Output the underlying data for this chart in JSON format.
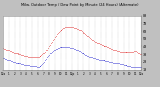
{
  "title": "Milw. Outdoor Temp / Dew Point by Minute (24 Hours) (Alternate)",
  "bg_color": "#c0c0c0",
  "plot_bg": "#ffffff",
  "title_bg": "#c0c0c0",
  "grid_color": "#aaaaaa",
  "red_color": "#dd0000",
  "blue_color": "#0000cc",
  "ylim": [
    10,
    80
  ],
  "yticks": [
    10,
    20,
    30,
    40,
    50,
    60,
    70,
    80
  ],
  "xlim": [
    0,
    1440
  ],
  "xtick_positions": [
    0,
    60,
    120,
    180,
    240,
    300,
    360,
    420,
    480,
    540,
    600,
    660,
    720,
    780,
    840,
    900,
    960,
    1020,
    1080,
    1140,
    1200,
    1260,
    1320,
    1380,
    1440
  ],
  "temp_data": [
    [
      0,
      38
    ],
    [
      10,
      37
    ],
    [
      20,
      37
    ],
    [
      30,
      36
    ],
    [
      40,
      36
    ],
    [
      50,
      35
    ],
    [
      60,
      35
    ],
    [
      70,
      34
    ],
    [
      80,
      34
    ],
    [
      90,
      33
    ],
    [
      100,
      33
    ],
    [
      110,
      32
    ],
    [
      120,
      32
    ],
    [
      130,
      32
    ],
    [
      140,
      31
    ],
    [
      150,
      31
    ],
    [
      160,
      30
    ],
    [
      170,
      30
    ],
    [
      180,
      30
    ],
    [
      190,
      29
    ],
    [
      200,
      29
    ],
    [
      210,
      29
    ],
    [
      220,
      28
    ],
    [
      230,
      28
    ],
    [
      240,
      28
    ],
    [
      250,
      28
    ],
    [
      260,
      27
    ],
    [
      270,
      27
    ],
    [
      280,
      27
    ],
    [
      290,
      27
    ],
    [
      300,
      27
    ],
    [
      310,
      27
    ],
    [
      320,
      27
    ],
    [
      330,
      27
    ],
    [
      340,
      27
    ],
    [
      350,
      27
    ],
    [
      360,
      27
    ],
    [
      370,
      27
    ],
    [
      380,
      28
    ],
    [
      390,
      28
    ],
    [
      400,
      29
    ],
    [
      410,
      30
    ],
    [
      420,
      31
    ],
    [
      430,
      32
    ],
    [
      440,
      33
    ],
    [
      450,
      35
    ],
    [
      460,
      36
    ],
    [
      470,
      38
    ],
    [
      480,
      40
    ],
    [
      490,
      42
    ],
    [
      500,
      44
    ],
    [
      510,
      46
    ],
    [
      520,
      48
    ],
    [
      530,
      50
    ],
    [
      540,
      52
    ],
    [
      550,
      54
    ],
    [
      560,
      56
    ],
    [
      570,
      57
    ],
    [
      580,
      59
    ],
    [
      590,
      60
    ],
    [
      600,
      61
    ],
    [
      610,
      62
    ],
    [
      620,
      63
    ],
    [
      630,
      64
    ],
    [
      640,
      64
    ],
    [
      650,
      65
    ],
    [
      660,
      65
    ],
    [
      670,
      65
    ],
    [
      680,
      65
    ],
    [
      690,
      65
    ],
    [
      700,
      65
    ],
    [
      710,
      65
    ],
    [
      720,
      65
    ],
    [
      730,
      65
    ],
    [
      740,
      64
    ],
    [
      750,
      64
    ],
    [
      760,
      64
    ],
    [
      770,
      63
    ],
    [
      780,
      63
    ],
    [
      790,
      62
    ],
    [
      800,
      61
    ],
    [
      810,
      61
    ],
    [
      820,
      60
    ],
    [
      830,
      59
    ],
    [
      840,
      58
    ],
    [
      850,
      57
    ],
    [
      860,
      56
    ],
    [
      870,
      55
    ],
    [
      880,
      54
    ],
    [
      890,
      53
    ],
    [
      900,
      52
    ],
    [
      910,
      51
    ],
    [
      920,
      50
    ],
    [
      930,
      49
    ],
    [
      940,
      48
    ],
    [
      950,
      47
    ],
    [
      960,
      46
    ],
    [
      970,
      46
    ],
    [
      980,
      45
    ],
    [
      990,
      44
    ],
    [
      1000,
      44
    ],
    [
      1010,
      43
    ],
    [
      1020,
      43
    ],
    [
      1030,
      42
    ],
    [
      1040,
      42
    ],
    [
      1050,
      41
    ],
    [
      1060,
      41
    ],
    [
      1070,
      40
    ],
    [
      1080,
      40
    ],
    [
      1090,
      39
    ],
    [
      1100,
      39
    ],
    [
      1110,
      38
    ],
    [
      1120,
      38
    ],
    [
      1130,
      37
    ],
    [
      1140,
      37
    ],
    [
      1150,
      36
    ],
    [
      1160,
      36
    ],
    [
      1170,
      35
    ],
    [
      1180,
      35
    ],
    [
      1190,
      34
    ],
    [
      1200,
      34
    ],
    [
      1210,
      34
    ],
    [
      1220,
      33
    ],
    [
      1230,
      33
    ],
    [
      1240,
      33
    ],
    [
      1250,
      33
    ],
    [
      1260,
      33
    ],
    [
      1270,
      33
    ],
    [
      1280,
      33
    ],
    [
      1290,
      33
    ],
    [
      1300,
      33
    ],
    [
      1310,
      33
    ],
    [
      1320,
      33
    ],
    [
      1330,
      33
    ],
    [
      1340,
      33
    ],
    [
      1350,
      33
    ],
    [
      1360,
      33
    ],
    [
      1370,
      34
    ],
    [
      1380,
      34
    ],
    [
      1390,
      34
    ],
    [
      1400,
      33
    ],
    [
      1410,
      32
    ],
    [
      1420,
      31
    ],
    [
      1430,
      30
    ],
    [
      1440,
      30
    ]
  ],
  "dew_data": [
    [
      0,
      25
    ],
    [
      10,
      25
    ],
    [
      20,
      24
    ],
    [
      30,
      24
    ],
    [
      40,
      23
    ],
    [
      50,
      23
    ],
    [
      60,
      22
    ],
    [
      70,
      22
    ],
    [
      80,
      21
    ],
    [
      90,
      21
    ],
    [
      100,
      20
    ],
    [
      110,
      20
    ],
    [
      120,
      20
    ],
    [
      130,
      19
    ],
    [
      140,
      19
    ],
    [
      150,
      18
    ],
    [
      160,
      18
    ],
    [
      170,
      18
    ],
    [
      180,
      18
    ],
    [
      190,
      17
    ],
    [
      200,
      17
    ],
    [
      210,
      17
    ],
    [
      220,
      16
    ],
    [
      230,
      16
    ],
    [
      240,
      16
    ],
    [
      250,
      16
    ],
    [
      260,
      16
    ],
    [
      270,
      16
    ],
    [
      280,
      15
    ],
    [
      290,
      15
    ],
    [
      300,
      15
    ],
    [
      310,
      15
    ],
    [
      320,
      15
    ],
    [
      330,
      15
    ],
    [
      340,
      15
    ],
    [
      350,
      14
    ],
    [
      360,
      14
    ],
    [
      370,
      14
    ],
    [
      380,
      15
    ],
    [
      390,
      15
    ],
    [
      400,
      16
    ],
    [
      410,
      17
    ],
    [
      420,
      18
    ],
    [
      430,
      20
    ],
    [
      440,
      22
    ],
    [
      450,
      24
    ],
    [
      460,
      26
    ],
    [
      470,
      28
    ],
    [
      480,
      29
    ],
    [
      490,
      31
    ],
    [
      500,
      32
    ],
    [
      510,
      33
    ],
    [
      520,
      34
    ],
    [
      530,
      35
    ],
    [
      540,
      36
    ],
    [
      550,
      37
    ],
    [
      560,
      37
    ],
    [
      570,
      38
    ],
    [
      580,
      38
    ],
    [
      590,
      39
    ],
    [
      600,
      39
    ],
    [
      610,
      39
    ],
    [
      620,
      39
    ],
    [
      630,
      39
    ],
    [
      640,
      39
    ],
    [
      650,
      39
    ],
    [
      660,
      39
    ],
    [
      670,
      39
    ],
    [
      680,
      39
    ],
    [
      690,
      39
    ],
    [
      700,
      38
    ],
    [
      710,
      38
    ],
    [
      720,
      38
    ],
    [
      730,
      38
    ],
    [
      740,
      37
    ],
    [
      750,
      37
    ],
    [
      760,
      36
    ],
    [
      770,
      36
    ],
    [
      780,
      35
    ],
    [
      790,
      34
    ],
    [
      800,
      34
    ],
    [
      810,
      33
    ],
    [
      820,
      32
    ],
    [
      830,
      32
    ],
    [
      840,
      31
    ],
    [
      850,
      30
    ],
    [
      860,
      29
    ],
    [
      870,
      29
    ],
    [
      880,
      28
    ],
    [
      890,
      28
    ],
    [
      900,
      27
    ],
    [
      910,
      27
    ],
    [
      920,
      26
    ],
    [
      930,
      26
    ],
    [
      940,
      25
    ],
    [
      950,
      25
    ],
    [
      960,
      25
    ],
    [
      970,
      24
    ],
    [
      980,
      24
    ],
    [
      990,
      24
    ],
    [
      1000,
      23
    ],
    [
      1010,
      23
    ],
    [
      1020,
      23
    ],
    [
      1030,
      22
    ],
    [
      1040,
      22
    ],
    [
      1050,
      22
    ],
    [
      1060,
      22
    ],
    [
      1070,
      21
    ],
    [
      1080,
      21
    ],
    [
      1090,
      21
    ],
    [
      1100,
      21
    ],
    [
      1110,
      20
    ],
    [
      1120,
      20
    ],
    [
      1130,
      20
    ],
    [
      1140,
      20
    ],
    [
      1150,
      19
    ],
    [
      1160,
      19
    ],
    [
      1170,
      19
    ],
    [
      1180,
      19
    ],
    [
      1190,
      18
    ],
    [
      1200,
      18
    ],
    [
      1210,
      18
    ],
    [
      1220,
      17
    ],
    [
      1230,
      17
    ],
    [
      1240,
      17
    ],
    [
      1250,
      17
    ],
    [
      1260,
      16
    ],
    [
      1270,
      16
    ],
    [
      1280,
      16
    ],
    [
      1290,
      16
    ],
    [
      1300,
      15
    ],
    [
      1310,
      15
    ],
    [
      1320,
      15
    ],
    [
      1330,
      15
    ],
    [
      1340,
      14
    ],
    [
      1350,
      14
    ],
    [
      1360,
      14
    ],
    [
      1370,
      14
    ],
    [
      1380,
      14
    ],
    [
      1390,
      14
    ],
    [
      1400,
      14
    ],
    [
      1410,
      14
    ],
    [
      1420,
      14
    ],
    [
      1430,
      14
    ],
    [
      1440,
      13
    ]
  ],
  "ytick_labels": [
    "10",
    "20",
    "30",
    "40",
    "50",
    "60",
    "70",
    "80"
  ],
  "xtick_labels": [
    "12a",
    "1",
    "2",
    "3",
    "4",
    "5",
    "6",
    "7",
    "8",
    "9",
    "10",
    "11",
    "12p",
    "1",
    "2",
    "3",
    "4",
    "5",
    "6",
    "7",
    "8",
    "9",
    "10",
    "11",
    "12a"
  ]
}
